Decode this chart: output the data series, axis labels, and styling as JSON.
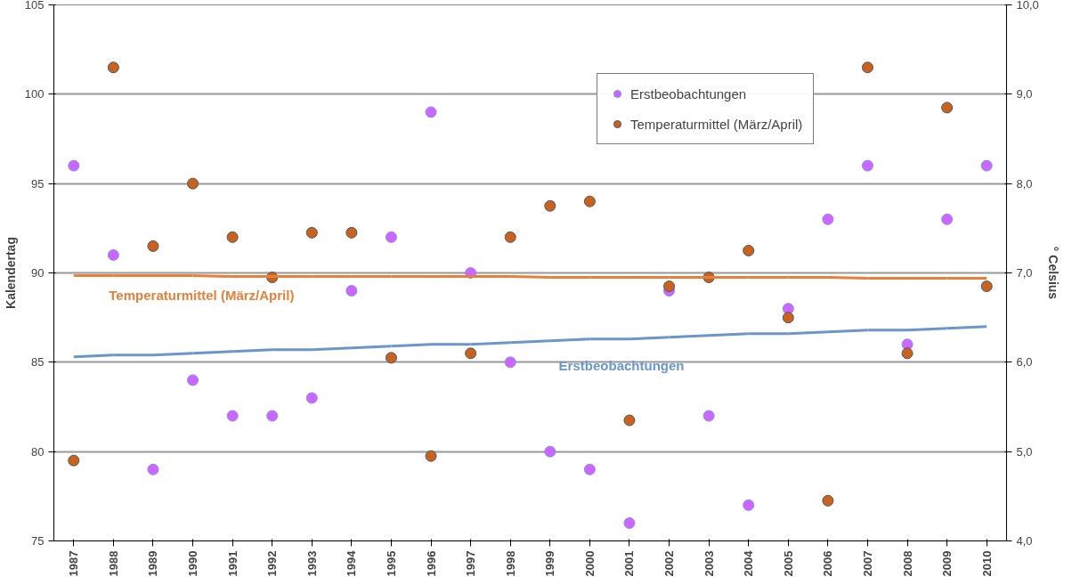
{
  "chart_data": {
    "type": "scatter",
    "ylabel": "Kalendertag",
    "y2label": "° Celsius",
    "x": [
      1987,
      1988,
      1989,
      1990,
      1991,
      1992,
      1993,
      1994,
      1995,
      1996,
      1997,
      1998,
      1999,
      2000,
      2001,
      2002,
      2003,
      2004,
      2005,
      2006,
      2007,
      2008,
      2009,
      2010
    ],
    "xlim": [
      1986.5,
      2010.5
    ],
    "xticks": [
      1987,
      1988,
      1989,
      1990,
      1991,
      1992,
      1993,
      1994,
      1995,
      1996,
      1997,
      1998,
      1999,
      2000,
      2001,
      2002,
      2003,
      2004,
      2005,
      2006,
      2007,
      2008,
      2009,
      2010
    ],
    "ylim": [
      75,
      105
    ],
    "yticks": [
      75,
      80,
      85,
      90,
      95,
      100,
      105
    ],
    "y2lim": [
      4,
      10
    ],
    "y2ticks": [
      {
        "value": 4,
        "label": "4,0"
      },
      {
        "value": 5,
        "label": "5,0"
      },
      {
        "value": 6,
        "label": "6,0"
      },
      {
        "value": 7,
        "label": "7,0"
      },
      {
        "value": 8,
        "label": "8,0"
      },
      {
        "value": 9,
        "label": "9,0"
      },
      {
        "value": 10,
        "label": "10,0"
      }
    ],
    "grid": "y",
    "legend": "top",
    "series": [
      {
        "name": "Erstbeobachtungen",
        "color": "#cc66ff",
        "marker": "circle",
        "values": [
          96,
          91,
          79,
          84,
          82,
          82,
          83,
          89,
          92,
          99,
          90,
          85,
          80,
          79,
          76,
          89,
          82,
          77,
          88,
          93,
          96,
          86,
          93,
          96
        ]
      },
      {
        "name": "Temperaturmittel (März/April)",
        "color": "#c8621e",
        "marker": "circle",
        "axis": "y2",
        "values": [
          4.9,
          9.3,
          7.3,
          8.0,
          7.4,
          6.95,
          7.45,
          7.45,
          6.05,
          4.95,
          6.1,
          7.4,
          7.75,
          7.8,
          5.35,
          6.85,
          6.95,
          7.25,
          6.5,
          4.45,
          9.3,
          6.1,
          8.85,
          6.85
        ]
      },
      {
        "type": "line",
        "color": "#e8803a",
        "marker": "none",
        "axis": "y2",
        "values": [
          6.97,
          6.97,
          6.97,
          6.97,
          6.96,
          6.96,
          6.96,
          6.96,
          6.96,
          6.96,
          6.96,
          6.96,
          6.95,
          6.95,
          6.95,
          6.95,
          6.95,
          6.95,
          6.95,
          6.95,
          6.94,
          6.94,
          6.94,
          6.94
        ]
      },
      {
        "type": "line",
        "color": "#6b96cc",
        "marker": "none",
        "values": [
          85.3,
          85.4,
          85.4,
          85.5,
          85.6,
          85.7,
          85.7,
          85.8,
          85.9,
          86.0,
          86.0,
          86.1,
          86.2,
          86.3,
          86.3,
          86.4,
          86.5,
          86.6,
          86.6,
          86.7,
          86.8,
          86.8,
          86.9,
          87.0
        ]
      }
    ],
    "annotations": [
      "Temperaturmittel (März/April)",
      "Erstbeobachtungen"
    ]
  }
}
